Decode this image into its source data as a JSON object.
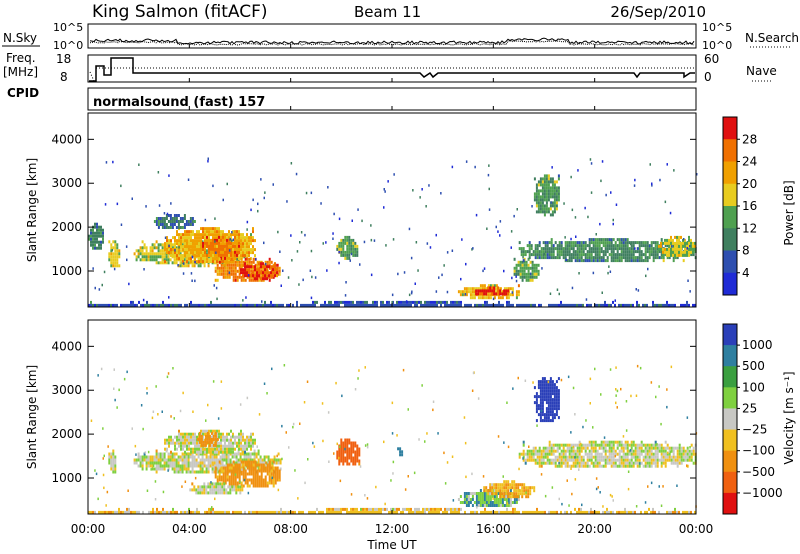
{
  "header": {
    "station": "King Salmon (fitACF)",
    "beam": "Beam 11",
    "date": "26/Sep/2010"
  },
  "noise_panel": {
    "left_label": "N.Sky",
    "right_label": "N.Search",
    "left_ticks": [
      "10^5",
      "10^0"
    ],
    "right_ticks": [
      "10^5",
      "10^0"
    ]
  },
  "freq_panel": {
    "left_label_1": "Freq.",
    "left_label_2": "[MHz]",
    "left_ticks": [
      "18",
      "8"
    ],
    "right_label": "Nave",
    "right_ticks": [
      "60",
      "0"
    ]
  },
  "cpid_panel": {
    "label": "CPID",
    "program": "normalsound (fast) 157"
  },
  "axes": {
    "ylabel": "Slant Range [km]",
    "yticks": [
      "1000",
      "2000",
      "3000",
      "4000"
    ],
    "xlabel": "Time UT",
    "xticks": [
      "00:00",
      "04:00",
      "08:00",
      "12:00",
      "16:00",
      "20:00",
      "00:00"
    ]
  },
  "power_colorbar": {
    "label": "Power [dB]",
    "ticks": [
      "4",
      "8",
      "12",
      "16",
      "20",
      "24",
      "28"
    ],
    "colors": [
      "#1f2bd6",
      "#2e4fb0",
      "#3f7f5f",
      "#4fa050",
      "#e8cc20",
      "#f0a000",
      "#f07000",
      "#e01010"
    ]
  },
  "velocity_colorbar": {
    "label": "Velocity [m s⁻¹]",
    "ticks": [
      "1000",
      "500",
      "100",
      "25",
      "−25",
      "−100",
      "−500",
      "−1000"
    ],
    "colors": [
      "#2a3fb8",
      "#2e7fa0",
      "#3a9f40",
      "#7fd040",
      "#c8c8c4",
      "#f0c020",
      "#f09010",
      "#f06010",
      "#e01010"
    ]
  },
  "chart_data": [
    {
      "type": "heatmap",
      "title": "Power",
      "xlabel": "Time UT",
      "ylabel": "Slant Range [km]",
      "xlim": [
        0,
        24
      ],
      "ylim": [
        180,
        4600
      ],
      "colorbar": {
        "label": "Power [dB]",
        "range": [
          0,
          32
        ]
      },
      "regions": [
        {
          "t0": 0.0,
          "t1": 0.6,
          "r0": 1500,
          "r1": 2100,
          "value": 10
        },
        {
          "t0": 0.8,
          "t1": 1.2,
          "r0": 1100,
          "r1": 1700,
          "value": 18
        },
        {
          "t0": 1.8,
          "t1": 6.2,
          "r0": 1150,
          "r1": 1700,
          "value": 17
        },
        {
          "t0": 3.0,
          "t1": 6.6,
          "r0": 1200,
          "r1": 2000,
          "value": 21
        },
        {
          "t0": 4.5,
          "t1": 6.0,
          "r0": 1300,
          "r1": 1800,
          "value": 25
        },
        {
          "t0": 5.0,
          "t1": 7.6,
          "r0": 800,
          "r1": 1300,
          "value": 24
        },
        {
          "t0": 6.0,
          "t1": 7.5,
          "r0": 850,
          "r1": 1200,
          "value": 28
        },
        {
          "t0": 9.8,
          "t1": 10.6,
          "r0": 1300,
          "r1": 1800,
          "value": 14
        },
        {
          "t0": 14.6,
          "t1": 17.0,
          "r0": 400,
          "r1": 700,
          "value": 20
        },
        {
          "t0": 15.2,
          "t1": 16.6,
          "r0": 450,
          "r1": 650,
          "value": 29
        },
        {
          "t0": 16.8,
          "t1": 17.8,
          "r0": 800,
          "r1": 1300,
          "value": 14
        },
        {
          "t0": 17.0,
          "t1": 24.0,
          "r0": 1250,
          "r1": 1750,
          "value": 11
        },
        {
          "t0": 22.5,
          "t1": 24.0,
          "r0": 1350,
          "r1": 1800,
          "value": 17
        },
        {
          "t0": 17.6,
          "t1": 18.6,
          "r0": 2300,
          "r1": 3200,
          "value": 13
        },
        {
          "t0": 2.6,
          "t1": 4.2,
          "r0": 2000,
          "r1": 2300,
          "value": 9
        },
        {
          "t0": 0.0,
          "t1": 24.0,
          "r0": 200,
          "r1": 320,
          "value": 6
        }
      ]
    },
    {
      "type": "heatmap",
      "title": "Velocity",
      "xlabel": "Time UT",
      "ylabel": "Slant Range [km]",
      "xlim": [
        0,
        24
      ],
      "ylim": [
        180,
        4600
      ],
      "colorbar": {
        "label": "Velocity [m s⁻¹]",
        "range": [
          -1000,
          1000
        ]
      },
      "regions": [
        {
          "t0": 0.8,
          "t1": 1.1,
          "r0": 1150,
          "r1": 1650,
          "value": 0
        },
        {
          "t0": 1.8,
          "t1": 7.6,
          "r0": 1150,
          "r1": 1650,
          "value": 0
        },
        {
          "t0": 3.0,
          "t1": 6.6,
          "r0": 1600,
          "r1": 2100,
          "value": 0
        },
        {
          "t0": 4.3,
          "t1": 5.1,
          "r0": 1750,
          "r1": 2050,
          "value": -200
        },
        {
          "t0": 5.0,
          "t1": 7.6,
          "r0": 800,
          "r1": 1400,
          "value": -150
        },
        {
          "t0": 4.0,
          "t1": 6.2,
          "r0": 650,
          "r1": 900,
          "value": 0
        },
        {
          "t0": 9.8,
          "t1": 10.7,
          "r0": 1300,
          "r1": 1900,
          "value": -600
        },
        {
          "t0": 12.2,
          "t1": 12.4,
          "r0": 1500,
          "r1": 1700,
          "value": 300
        },
        {
          "t0": 14.6,
          "t1": 17.0,
          "r0": 350,
          "r1": 750,
          "value": 80
        },
        {
          "t0": 15.6,
          "t1": 17.6,
          "r0": 600,
          "r1": 950,
          "value": -90
        },
        {
          "t0": 17.0,
          "t1": 24.0,
          "r0": 1250,
          "r1": 1850,
          "value": 0
        },
        {
          "t0": 17.6,
          "t1": 18.6,
          "r0": 2300,
          "r1": 3300,
          "value": 600
        },
        {
          "t0": 0.0,
          "t1": 24.0,
          "r0": 200,
          "r1": 320,
          "value": -60
        }
      ]
    }
  ]
}
